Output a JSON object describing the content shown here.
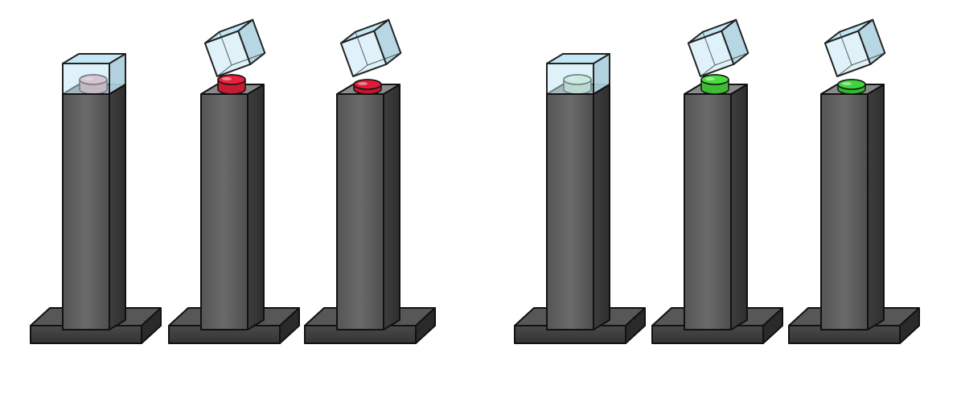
{
  "background": "#ffffff",
  "palette": {
    "outline": "#111111",
    "pillar_front": "#5d5d5d",
    "pillar_side": "#3a3a3a",
    "pillar_top": "#8a8a8a",
    "base_front": "#3f3f3f",
    "base_side": "#2a2a2a",
    "base_top": "#575757",
    "glass_fill": "#bfe6f5",
    "glass_edge": "#6cc1df"
  },
  "pedestals": [
    {
      "id": "red-1",
      "button_color": "#f2a0a6",
      "state": "unpressed-dim",
      "cover": "closed"
    },
    {
      "id": "red-2",
      "button_color": "#e8213c",
      "state": "lit",
      "cover": "open"
    },
    {
      "id": "red-3",
      "button_color": "#e11b37",
      "state": "pressed",
      "cover": "open"
    },
    {
      "id": "green-1",
      "button_color": "#d6f0c2",
      "state": "unpressed-dim",
      "cover": "closed"
    },
    {
      "id": "green-2",
      "button_color": "#49dd3f",
      "state": "lit",
      "cover": "open"
    },
    {
      "id": "green-3",
      "button_color": "#3fd63a",
      "state": "pressed",
      "cover": "open"
    }
  ]
}
